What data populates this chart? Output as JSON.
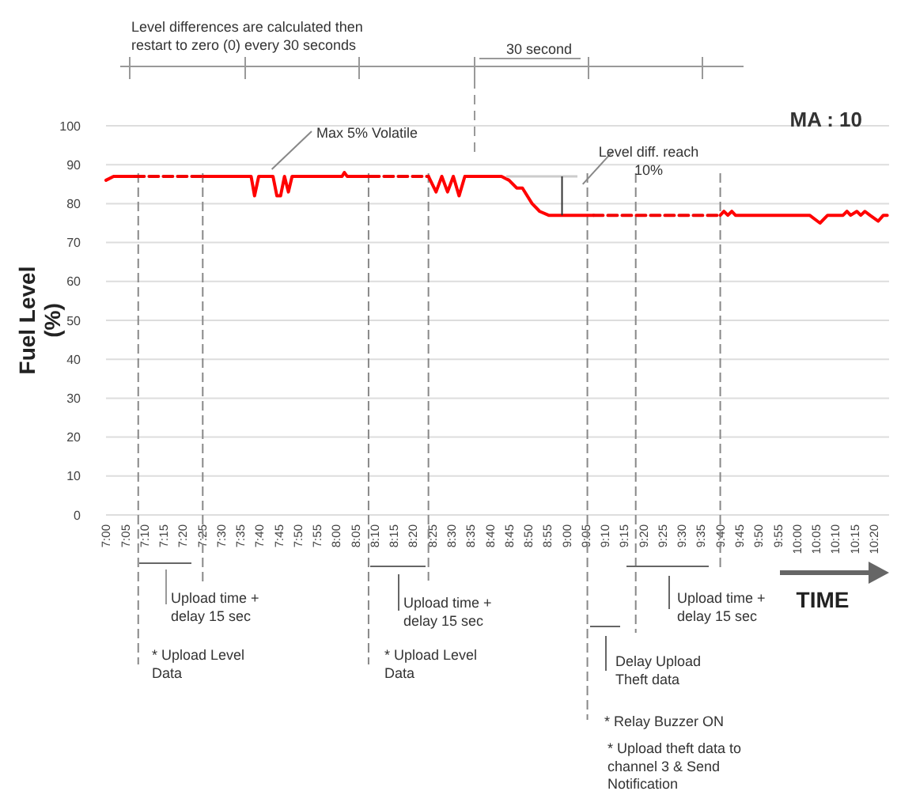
{
  "chart_data": {
    "type": "line",
    "ylabel": "Fuel Level (%)",
    "xlabel": "TIME",
    "xlim": [
      7,
      10.4
    ],
    "ylim": [
      0,
      100
    ],
    "yticks": [
      0,
      10,
      20,
      30,
      40,
      50,
      60,
      70,
      80,
      90,
      100
    ],
    "xticks": [
      {
        "value": 7,
        "label": "7:00"
      },
      {
        "value": 7.0833,
        "label": "7:05"
      },
      {
        "value": 7.1667,
        "label": "7:10"
      },
      {
        "value": 7.25,
        "label": "7:15"
      },
      {
        "value": 7.3333,
        "label": "7:20"
      },
      {
        "value": 7.4167,
        "label": "7:25"
      },
      {
        "value": 7.5,
        "label": "7:30"
      },
      {
        "value": 7.5833,
        "label": "7:35"
      },
      {
        "value": 7.6667,
        "label": "7:40"
      },
      {
        "value": 7.75,
        "label": "7:45"
      },
      {
        "value": 7.8333,
        "label": "7:50"
      },
      {
        "value": 7.9167,
        "label": "7:55"
      },
      {
        "value": 8,
        "label": "8:00"
      },
      {
        "value": 8.0833,
        "label": "8:05"
      },
      {
        "value": 8.1667,
        "label": "8:10"
      },
      {
        "value": 8.25,
        "label": "8:15"
      },
      {
        "value": 8.3333,
        "label": "8:20"
      },
      {
        "value": 8.4167,
        "label": "8:25"
      },
      {
        "value": 8.5,
        "label": "8:30"
      },
      {
        "value": 8.5833,
        "label": "8:35"
      },
      {
        "value": 8.6667,
        "label": "8:40"
      },
      {
        "value": 8.75,
        "label": "8:45"
      },
      {
        "value": 8.8333,
        "label": "8:50"
      },
      {
        "value": 8.9167,
        "label": "8:55"
      },
      {
        "value": 9,
        "label": "9:00"
      },
      {
        "value": 9.0833,
        "label": "9:05"
      },
      {
        "value": 9.1667,
        "label": "9:10"
      },
      {
        "value": 9.25,
        "label": "9:15"
      },
      {
        "value": 9.3333,
        "label": "9:20"
      },
      {
        "value": 9.4167,
        "label": "9:25"
      },
      {
        "value": 9.5,
        "label": "9:30"
      },
      {
        "value": 9.5833,
        "label": "9:35"
      },
      {
        "value": 9.6667,
        "label": "9:40"
      },
      {
        "value": 9.75,
        "label": "9:45"
      },
      {
        "value": 9.8333,
        "label": "9:50"
      },
      {
        "value": 9.9167,
        "label": "9:55"
      },
      {
        "value": 10,
        "label": "10:00"
      },
      {
        "value": 10.0833,
        "label": "10:05"
      },
      {
        "value": 10.1667,
        "label": "10:10"
      },
      {
        "value": 10.25,
        "label": "10:15"
      },
      {
        "value": 10.3333,
        "label": "10:20"
      }
    ],
    "grid": "y",
    "series": [
      {
        "color": "#ff0000",
        "line_style": "solid",
        "x": [
          7.0,
          7.033,
          7.125,
          7.267,
          7.423,
          7.63,
          7.645,
          7.663,
          7.725,
          7.742,
          7.758,
          7.775,
          7.792,
          7.808,
          8.025,
          8.035,
          8.047,
          8.145,
          8.267,
          8.4,
          8.433,
          8.458,
          8.483,
          8.508,
          8.533,
          8.558,
          8.717,
          8.75,
          8.783,
          8.808,
          8.85,
          8.883,
          8.922,
          9.117,
          9.383,
          9.667,
          9.683,
          9.7,
          9.717,
          9.733,
          10.055,
          10.1,
          10.133,
          10.2,
          10.217,
          10.233,
          10.26,
          10.277,
          10.295,
          10.317,
          10.353,
          10.375,
          10.392
        ],
        "values": [
          86,
          87,
          87,
          null,
          87,
          87,
          82,
          87,
          87,
          82,
          82,
          87,
          83,
          87,
          87,
          88,
          87,
          87,
          null,
          87,
          83,
          87,
          83,
          87,
          82,
          87,
          87,
          86,
          84,
          84,
          80,
          78,
          77,
          77,
          null,
          77,
          78,
          77,
          78,
          77,
          77,
          75,
          77,
          77,
          78,
          77,
          78,
          77,
          78,
          77,
          75.5,
          77,
          77
        ]
      },
      {
        "color": "#f20000",
        "line_style": "dashed",
        "x": [
          7.125,
          7.274,
          7.423,
          7.5,
          8.145,
          8.272,
          8.4,
          8.5,
          9.117,
          9.392,
          9.667
        ],
        "values": [
          87,
          87,
          87,
          null,
          87,
          87,
          87,
          null,
          77,
          77,
          77
        ]
      }
    ],
    "ref_lines": [
      {
        "axis": "x",
        "value": 7.14,
        "color": "#888888",
        "line_style": "dashed"
      },
      {
        "axis": "x",
        "value": 7.42,
        "color": "#888888",
        "line_style": "dashed"
      },
      {
        "axis": "x",
        "value": 8.14,
        "color": "#888888",
        "line_style": "dashed"
      },
      {
        "axis": "x",
        "value": 8.4,
        "color": "#888888",
        "line_style": "dashed"
      },
      {
        "axis": "x",
        "value": 9.09,
        "color": "#888888",
        "line_style": "dashed"
      },
      {
        "axis": "x",
        "value": 9.3,
        "color": "#888888",
        "line_style": "dashed"
      },
      {
        "axis": "x",
        "value": 9.667,
        "color": "#888888",
        "line_style": "dashed"
      }
    ],
    "annotations": [
      "Level differences are calculated then restart to zero (0)  every 30 seconds",
      "30 second",
      "MA : 10",
      {
        "text": "Max 5% Volatile",
        "x": 7.72,
        "y": 88
      },
      {
        "text": "Level diff. reach 10%",
        "x": 9.07,
        "y": 85
      },
      "Upload time + delay  15 sec",
      "Upload time + delay  15 sec",
      "Upload time + delay  15 sec",
      "* Upload Level Data",
      "* Upload Level Data",
      "Delay Upload Theft data",
      "* Relay Buzzer   ON",
      "* Upload theft data to channel 3 & Send Notification"
    ]
  }
}
